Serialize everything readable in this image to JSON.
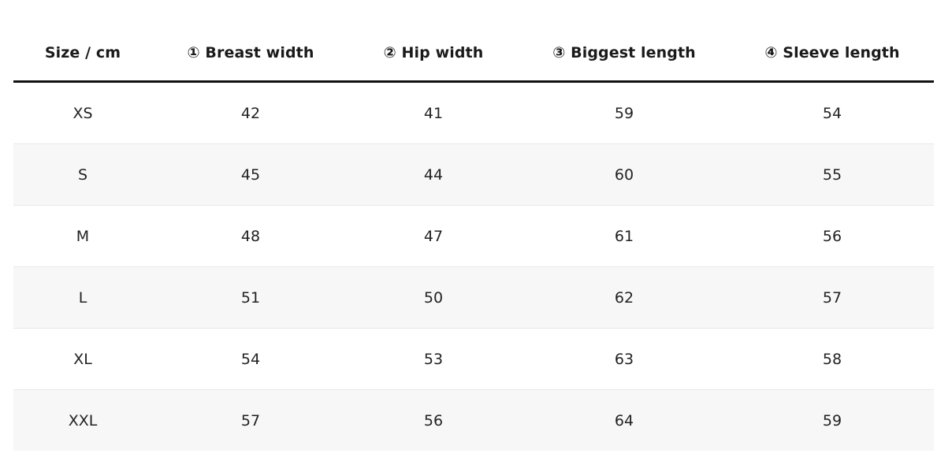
{
  "table": {
    "headers": [
      "Size / cm",
      "① Breast width",
      "② Hip width",
      "③ Biggest length",
      "④ Sleeve length"
    ],
    "rows": [
      [
        "XS",
        "42",
        "41",
        "59",
        "54"
      ],
      [
        "S",
        "45",
        "44",
        "60",
        "55"
      ],
      [
        "M",
        "48",
        "47",
        "61",
        "56"
      ],
      [
        "L",
        "51",
        "50",
        "62",
        "57"
      ],
      [
        "XL",
        "54",
        "53",
        "63",
        "58"
      ],
      [
        "XXL",
        "57",
        "56",
        "64",
        "59"
      ]
    ]
  },
  "colors": {
    "header_rule": "#111111",
    "row_stripe": "#f7f7f7",
    "row_divider": "#e8e8e8",
    "text": "#1a1a1a"
  }
}
